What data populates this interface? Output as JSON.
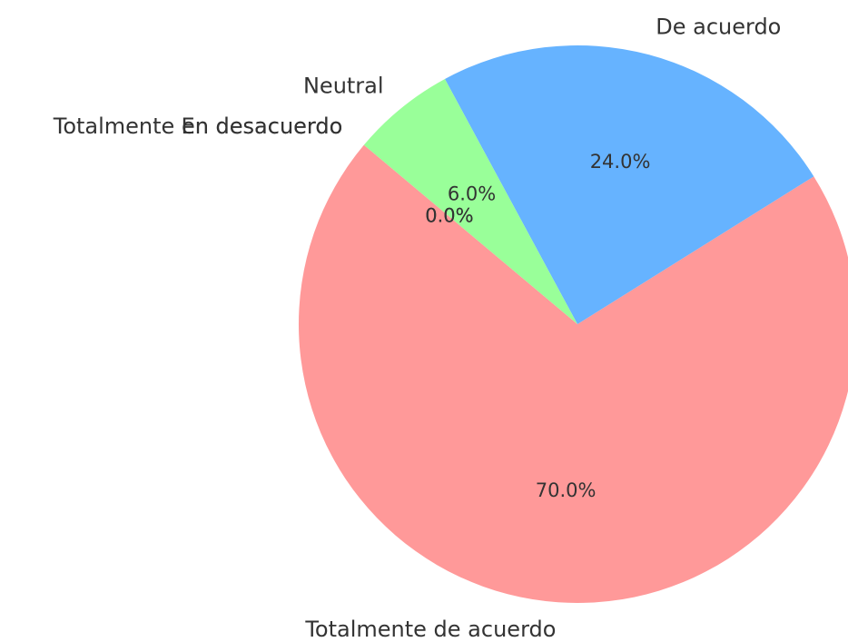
{
  "chart_data": {
    "type": "pie",
    "categories": [
      "Totalmente de acuerdo",
      "De acuerdo",
      "Neutral",
      "En desacuerdo",
      "Totalmente en desacuerdo"
    ],
    "values": [
      70,
      24,
      6,
      0,
      0
    ],
    "value_labels": [
      "70.0%",
      "24.0%",
      "6.0%",
      "0.0%",
      "0.0%"
    ],
    "colors": [
      "#ff9999",
      "#66b3ff",
      "#99ff99",
      "#ffcc99",
      "#c2c2f0"
    ]
  }
}
